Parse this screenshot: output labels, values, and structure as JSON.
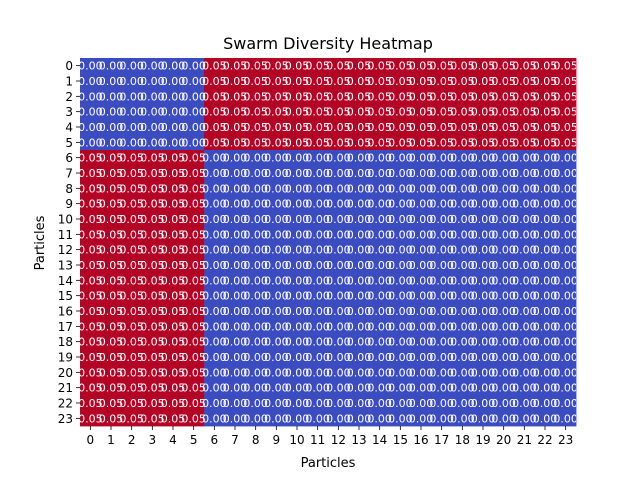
{
  "chart_data": {
    "type": "heatmap",
    "title": "Swarm Diversity Heatmap",
    "xlabel": "Particles",
    "ylabel": "Particles",
    "x_ticks": [
      "0",
      "1",
      "2",
      "3",
      "4",
      "5",
      "6",
      "7",
      "8",
      "9",
      "10",
      "11",
      "12",
      "13",
      "14",
      "15",
      "16",
      "17",
      "18",
      "19",
      "20",
      "21",
      "22",
      "23"
    ],
    "y_ticks": [
      "0",
      "1",
      "2",
      "3",
      "4",
      "5",
      "6",
      "7",
      "8",
      "9",
      "10",
      "11",
      "12",
      "13",
      "14",
      "15",
      "16",
      "17",
      "18",
      "19",
      "20",
      "21",
      "22",
      "23"
    ],
    "cell_format": "0.00",
    "colormap": "coolwarm",
    "value_range": [
      0.0,
      0.05
    ],
    "colors": {
      "low": "#3b4cc0",
      "high": "#b40426",
      "annotation": "#ffffff"
    },
    "values": [
      [
        0,
        0,
        0,
        0,
        0,
        0,
        0.05,
        0.05,
        0.05,
        0.05,
        0.05,
        0.05,
        0.05,
        0.05,
        0.05,
        0.05,
        0.05,
        0.05,
        0.05,
        0.05,
        0.05,
        0.05,
        0.05,
        0.05
      ],
      [
        0,
        0,
        0,
        0,
        0,
        0,
        0.05,
        0.05,
        0.05,
        0.05,
        0.05,
        0.05,
        0.05,
        0.05,
        0.05,
        0.05,
        0.05,
        0.05,
        0.05,
        0.05,
        0.05,
        0.05,
        0.05,
        0.05
      ],
      [
        0,
        0,
        0,
        0,
        0,
        0,
        0.05,
        0.05,
        0.05,
        0.05,
        0.05,
        0.05,
        0.05,
        0.05,
        0.05,
        0.05,
        0.05,
        0.05,
        0.05,
        0.05,
        0.05,
        0.05,
        0.05,
        0.05
      ],
      [
        0,
        0,
        0,
        0,
        0,
        0,
        0.05,
        0.05,
        0.05,
        0.05,
        0.05,
        0.05,
        0.05,
        0.05,
        0.05,
        0.05,
        0.05,
        0.05,
        0.05,
        0.05,
        0.05,
        0.05,
        0.05,
        0.05
      ],
      [
        0,
        0,
        0,
        0,
        0,
        0,
        0.05,
        0.05,
        0.05,
        0.05,
        0.05,
        0.05,
        0.05,
        0.05,
        0.05,
        0.05,
        0.05,
        0.05,
        0.05,
        0.05,
        0.05,
        0.05,
        0.05,
        0.05
      ],
      [
        0,
        0,
        0,
        0,
        0,
        0,
        0.05,
        0.05,
        0.05,
        0.05,
        0.05,
        0.05,
        0.05,
        0.05,
        0.05,
        0.05,
        0.05,
        0.05,
        0.05,
        0.05,
        0.05,
        0.05,
        0.05,
        0.05
      ],
      [
        0.05,
        0.05,
        0.05,
        0.05,
        0.05,
        0.05,
        0,
        0,
        0,
        0,
        0,
        0,
        0,
        0,
        0,
        0,
        0,
        0,
        0,
        0,
        0,
        0,
        0,
        0
      ],
      [
        0.05,
        0.05,
        0.05,
        0.05,
        0.05,
        0.05,
        0,
        0,
        0,
        0,
        0,
        0,
        0,
        0,
        0,
        0,
        0,
        0,
        0,
        0,
        0,
        0,
        0,
        0
      ],
      [
        0.05,
        0.05,
        0.05,
        0.05,
        0.05,
        0.05,
        0,
        0,
        0,
        0,
        0,
        0,
        0,
        0,
        0,
        0,
        0,
        0,
        0,
        0,
        0,
        0,
        0,
        0
      ],
      [
        0.05,
        0.05,
        0.05,
        0.05,
        0.05,
        0.05,
        0,
        0,
        0,
        0,
        0,
        0,
        0,
        0,
        0,
        0,
        0,
        0,
        0,
        0,
        0,
        0,
        0,
        0
      ],
      [
        0.05,
        0.05,
        0.05,
        0.05,
        0.05,
        0.05,
        0,
        0,
        0,
        0,
        0,
        0,
        0,
        0,
        0,
        0,
        0,
        0,
        0,
        0,
        0,
        0,
        0,
        0
      ],
      [
        0.05,
        0.05,
        0.05,
        0.05,
        0.05,
        0.05,
        0,
        0,
        0,
        0,
        0,
        0,
        0,
        0,
        0,
        0,
        0,
        0,
        0,
        0,
        0,
        0,
        0,
        0
      ],
      [
        0.05,
        0.05,
        0.05,
        0.05,
        0.05,
        0.05,
        0,
        0,
        0,
        0,
        0,
        0,
        0,
        0,
        0,
        0,
        0,
        0,
        0,
        0,
        0,
        0,
        0,
        0
      ],
      [
        0.05,
        0.05,
        0.05,
        0.05,
        0.05,
        0.05,
        0,
        0,
        0,
        0,
        0,
        0,
        0,
        0,
        0,
        0,
        0,
        0,
        0,
        0,
        0,
        0,
        0,
        0
      ],
      [
        0.05,
        0.05,
        0.05,
        0.05,
        0.05,
        0.05,
        0,
        0,
        0,
        0,
        0,
        0,
        0,
        0,
        0,
        0,
        0,
        0,
        0,
        0,
        0,
        0,
        0,
        0
      ],
      [
        0.05,
        0.05,
        0.05,
        0.05,
        0.05,
        0.05,
        0,
        0,
        0,
        0,
        0,
        0,
        0,
        0,
        0,
        0,
        0,
        0,
        0,
        0,
        0,
        0,
        0,
        0
      ],
      [
        0.05,
        0.05,
        0.05,
        0.05,
        0.05,
        0.05,
        0,
        0,
        0,
        0,
        0,
        0,
        0,
        0,
        0,
        0,
        0,
        0,
        0,
        0,
        0,
        0,
        0,
        0
      ],
      [
        0.05,
        0.05,
        0.05,
        0.05,
        0.05,
        0.05,
        0,
        0,
        0,
        0,
        0,
        0,
        0,
        0,
        0,
        0,
        0,
        0,
        0,
        0,
        0,
        0,
        0,
        0
      ],
      [
        0.05,
        0.05,
        0.05,
        0.05,
        0.05,
        0.05,
        0,
        0,
        0,
        0,
        0,
        0,
        0,
        0,
        0,
        0,
        0,
        0,
        0,
        0,
        0,
        0,
        0,
        0
      ],
      [
        0.05,
        0.05,
        0.05,
        0.05,
        0.05,
        0.05,
        0,
        0,
        0,
        0,
        0,
        0,
        0,
        0,
        0,
        0,
        0,
        0,
        0,
        0,
        0,
        0,
        0,
        0
      ],
      [
        0.05,
        0.05,
        0.05,
        0.05,
        0.05,
        0.05,
        0,
        0,
        0,
        0,
        0,
        0,
        0,
        0,
        0,
        0,
        0,
        0,
        0,
        0,
        0,
        0,
        0,
        0
      ],
      [
        0.05,
        0.05,
        0.05,
        0.05,
        0.05,
        0.05,
        0,
        0,
        0,
        0,
        0,
        0,
        0,
        0,
        0,
        0,
        0,
        0,
        0,
        0,
        0,
        0,
        0,
        0
      ],
      [
        0.05,
        0.05,
        0.05,
        0.05,
        0.05,
        0.05,
        0,
        0,
        0,
        0,
        0,
        0,
        0,
        0,
        0,
        0,
        0,
        0,
        0,
        0,
        0,
        0,
        0,
        0
      ],
      [
        0.05,
        0.05,
        0.05,
        0.05,
        0.05,
        0.05,
        0,
        0,
        0,
        0,
        0,
        0,
        0,
        0,
        0,
        0,
        0,
        0,
        0,
        0,
        0,
        0,
        0,
        0
      ]
    ]
  }
}
